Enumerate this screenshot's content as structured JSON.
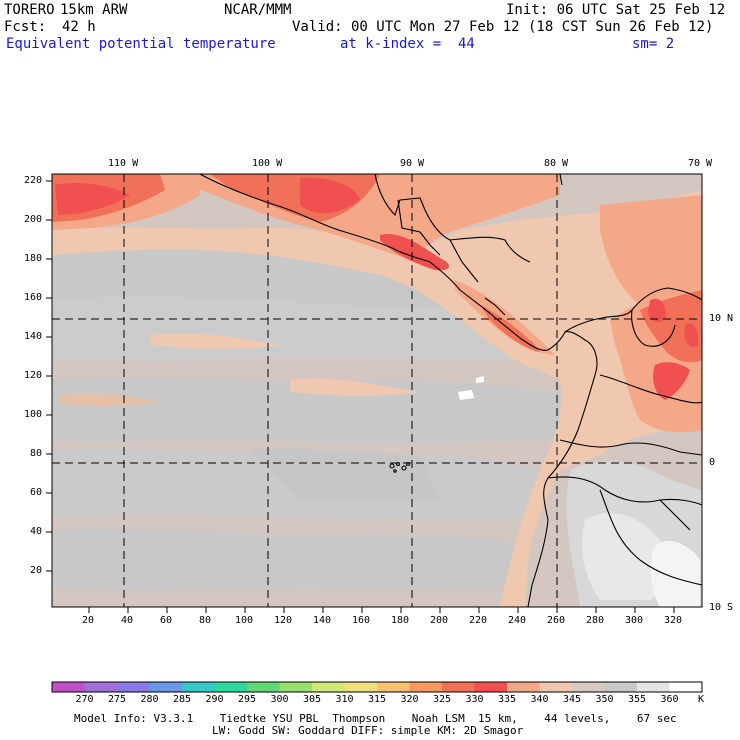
{
  "header": {
    "model": "TORERO",
    "resolution": "15km ARW",
    "org": "NCAR/MMM",
    "init": "Init: 06 UTC Sat 25 Feb 12",
    "fcst_label": "Fcst:",
    "fcst_value": "42 h",
    "valid": "Valid: 00 UTC Mon 27 Feb 12 (18 CST Sun 26 Feb 12)",
    "field": "Equivalent potential temperature",
    "kindex": "at k-index =  44",
    "smooth": "sm= 2"
  },
  "map": {
    "lon_labels": [
      "110 W",
      "100 W",
      "90 W",
      "80 W",
      "70 W"
    ],
    "lat_labels": [
      "10 N",
      "0",
      "10 S"
    ],
    "y_ticks": [
      "220",
      "200",
      "180",
      "160",
      "140",
      "120",
      "100",
      "80",
      "60",
      "40",
      "20"
    ],
    "x_ticks": [
      "20",
      "40",
      "60",
      "80",
      "100",
      "120",
      "140",
      "160",
      "180",
      "200",
      "220",
      "240",
      "260",
      "280",
      "300",
      "320"
    ]
  },
  "colorbar": {
    "labels": [
      "270",
      "275",
      "280",
      "285",
      "290",
      "295",
      "300",
      "305",
      "310",
      "315",
      "320",
      "325",
      "330",
      "335",
      "340",
      "345",
      "350",
      "355",
      "360"
    ],
    "unit": "K",
    "colors": [
      "#c050c8",
      "#a070d8",
      "#8878e8",
      "#6898e8",
      "#38c8c8",
      "#30d8a0",
      "#60d878",
      "#98e070",
      "#d0e878",
      "#f0e080",
      "#f8c070",
      "#f89860",
      "#f07058",
      "#f05050",
      "#f4a888",
      "#f0c8b0",
      "#d8c8c0",
      "#c8c8c8",
      "#e4e4e4",
      "#ffffff"
    ]
  },
  "footer": {
    "line1": "Model Info: V3.3.1    Tiedtke YSU PBL  Thompson    Noah LSM  15 km,    44 levels,    67 sec",
    "line2": "LW: Godd SW: Goddard DIFF: simple KM: 2D Smagor"
  }
}
